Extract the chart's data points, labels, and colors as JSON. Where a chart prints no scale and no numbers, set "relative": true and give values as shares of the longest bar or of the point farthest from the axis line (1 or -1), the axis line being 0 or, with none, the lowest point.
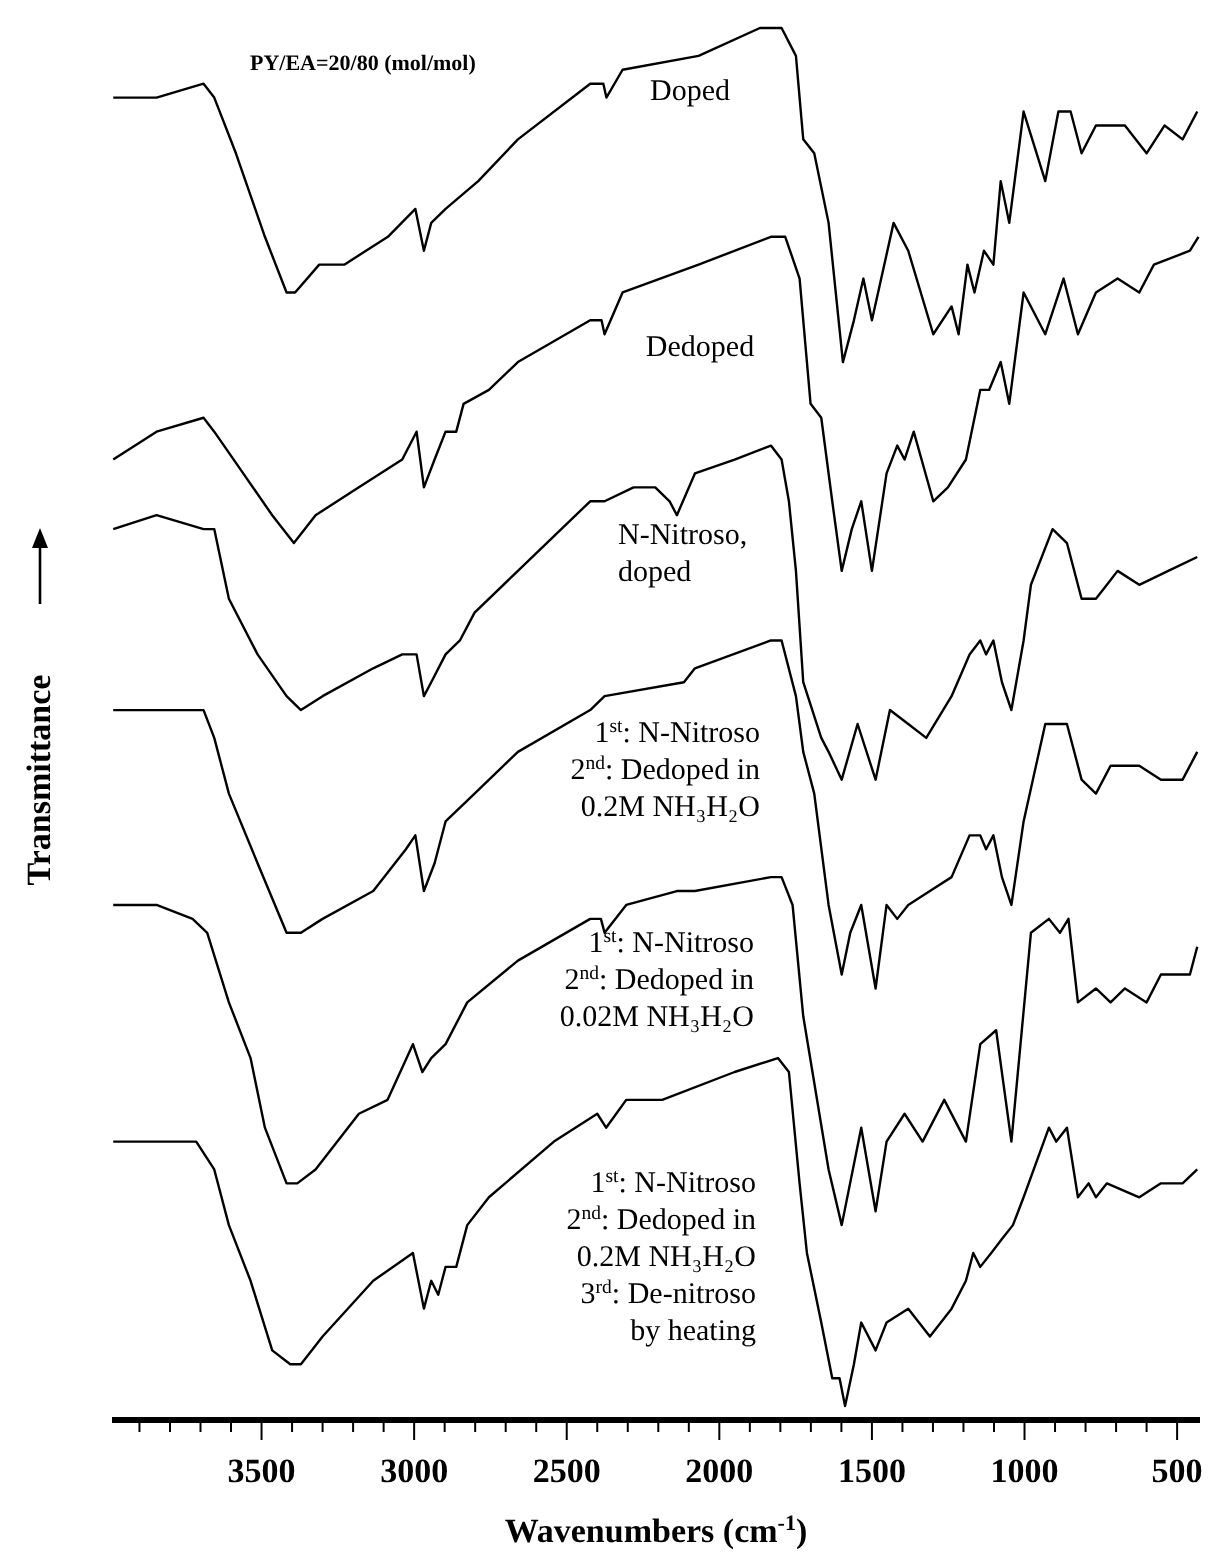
{
  "chart_data": {
    "type": "line",
    "title": "PY/EA=20/80 (mol/mol)",
    "xlabel": "Wavenumbers (cm$^{-1}$)",
    "ylabel": "Transmittance",
    "relative": true,
    "xlim": [
      3990,
      425
    ],
    "xticks": [
      {
        "value": 3900,
        "label": null
      },
      {
        "value": 3800,
        "label": null
      },
      {
        "value": 3700,
        "label": null
      },
      {
        "value": 3600,
        "label": null
      },
      3500,
      {
        "value": 3400,
        "label": null
      },
      {
        "value": 3300,
        "label": null
      },
      {
        "value": 3200,
        "label": null
      },
      {
        "value": 3100,
        "label": null
      },
      3000,
      {
        "value": 2900,
        "label": null
      },
      {
        "value": 2800,
        "label": null
      },
      {
        "value": 2700,
        "label": null
      },
      {
        "value": 2600,
        "label": null
      },
      2500,
      {
        "value": 2400,
        "label": null
      },
      {
        "value": 2300,
        "label": null
      },
      {
        "value": 2200,
        "label": null
      },
      {
        "value": 2100,
        "label": null
      },
      2000,
      {
        "value": 1900,
        "label": null
      },
      {
        "value": 1800,
        "label": null
      },
      {
        "value": 1700,
        "label": null
      },
      {
        "value": 1600,
        "label": null
      },
      1500,
      {
        "value": 1400,
        "label": null
      },
      {
        "value": 1300,
        "label": null
      },
      {
        "value": 1200,
        "label": null
      },
      {
        "value": 1100,
        "label": null
      },
      1000,
      {
        "value": 900,
        "label": null
      },
      {
        "value": 800,
        "label": null
      },
      {
        "value": 700,
        "label": null
      },
      {
        "value": 600,
        "label": null
      },
      500
    ],
    "series": [
      {
        "name": "Doped",
        "color": "#000000",
        "x": [
          3986,
          3844,
          3690,
          3655,
          3584,
          3489,
          3418,
          3390,
          3311,
          3229,
          3086,
          2996,
          2968,
          2944,
          2897,
          2790,
          2660,
          2423,
          2380,
          2370,
          2317,
          2068,
          1867,
          1796,
          1749,
          1725,
          1689,
          1642,
          1595,
          1559,
          1528,
          1500,
          1429,
          1381,
          1299,
          1239,
          1216,
          1187,
          1164,
          1133,
          1102,
          1078,
          1050,
          1003,
          932,
          889,
          849,
          813,
          766,
          671,
          600,
          541,
          482,
          434
        ],
        "values": [
          0.95,
          0.95,
          0.96,
          0.95,
          0.91,
          0.85,
          0.81,
          0.81,
          0.83,
          0.83,
          0.85,
          0.87,
          0.84,
          0.86,
          0.87,
          0.89,
          0.92,
          0.96,
          0.96,
          0.95,
          0.97,
          0.98,
          1.0,
          1.0,
          0.98,
          0.92,
          0.91,
          0.86,
          0.76,
          0.79,
          0.82,
          0.79,
          0.86,
          0.84,
          0.78,
          0.8,
          0.78,
          0.83,
          0.81,
          0.84,
          0.83,
          0.89,
          0.86,
          0.94,
          0.89,
          0.94,
          0.94,
          0.91,
          0.93,
          0.93,
          0.91,
          0.93,
          0.92,
          0.94
        ]
      },
      {
        "name": "Dedoped",
        "color": "#000000",
        "x": [
          3986,
          3844,
          3690,
          3655,
          3560,
          3465,
          3394,
          3323,
          3181,
          3039,
          2992,
          2968,
          2933,
          2897,
          2862,
          2838,
          2755,
          2660,
          2423,
          2386,
          2376,
          2317,
          2068,
          1831,
          1784,
          1737,
          1701,
          1666,
          1630,
          1599,
          1566,
          1535,
          1500,
          1452,
          1417,
          1393,
          1363,
          1299,
          1251,
          1192,
          1145,
          1116,
          1078,
          1050,
          1003,
          932,
          872,
          825,
          766,
          695,
          624,
          576,
          458,
          430
        ],
        "values": [
          0.69,
          0.71,
          0.72,
          0.71,
          0.68,
          0.65,
          0.63,
          0.65,
          0.67,
          0.69,
          0.71,
          0.67,
          0.69,
          0.71,
          0.71,
          0.73,
          0.74,
          0.76,
          0.79,
          0.79,
          0.78,
          0.81,
          0.83,
          0.85,
          0.85,
          0.82,
          0.73,
          0.72,
          0.66,
          0.61,
          0.64,
          0.66,
          0.61,
          0.68,
          0.7,
          0.69,
          0.71,
          0.66,
          0.67,
          0.69,
          0.74,
          0.74,
          0.76,
          0.73,
          0.81,
          0.78,
          0.82,
          0.78,
          0.81,
          0.82,
          0.81,
          0.83,
          0.84,
          0.85
        ]
      },
      {
        "name": "N-Nitroso,\ndoped",
        "color": "#000000",
        "x": [
          3986,
          3844,
          3690,
          3655,
          3607,
          3513,
          3418,
          3371,
          3300,
          3134,
          3039,
          2992,
          2968,
          2944,
          2897,
          2850,
          2802,
          2660,
          2423,
          2376,
          2281,
          2210,
          2163,
          2139,
          2080,
          1950,
          1831,
          1796,
          1772,
          1749,
          1725,
          1666,
          1642,
          1599,
          1547,
          1488,
          1441,
          1381,
          1322,
          1239,
          1180,
          1145,
          1126,
          1102,
          1074,
          1043,
          1003,
          979,
          908,
          861,
          813,
          766,
          730,
          695,
          624,
          529,
          434
        ],
        "values": [
          0.64,
          0.65,
          0.64,
          0.64,
          0.59,
          0.55,
          0.52,
          0.51,
          0.52,
          0.54,
          0.55,
          0.55,
          0.52,
          0.53,
          0.55,
          0.56,
          0.58,
          0.61,
          0.66,
          0.66,
          0.67,
          0.67,
          0.66,
          0.65,
          0.68,
          0.69,
          0.7,
          0.69,
          0.66,
          0.61,
          0.53,
          0.49,
          0.48,
          0.46,
          0.5,
          0.46,
          0.51,
          0.5,
          0.49,
          0.52,
          0.55,
          0.56,
          0.55,
          0.56,
          0.53,
          0.51,
          0.56,
          0.6,
          0.64,
          0.63,
          0.59,
          0.59,
          0.6,
          0.61,
          0.6,
          0.61,
          0.62
        ]
      },
      {
        "name": "1$^{st}$: N-Nitroso\n2$^{nd}$: Dedoped in\n0.2M NH₃H₂O",
        "color": "#000000",
        "x": [
          3986,
          3690,
          3655,
          3607,
          3513,
          3418,
          3371,
          3300,
          3134,
          3027,
          2996,
          2968,
          2933,
          2897,
          2802,
          2660,
          2423,
          2376,
          2116,
          2080,
          1831,
          1796,
          1749,
          1725,
          1689,
          1642,
          1599,
          1571,
          1535,
          1488,
          1452,
          1417,
          1381,
          1310,
          1239,
          1180,
          1145,
          1126,
          1102,
          1074,
          1043,
          1003,
          932,
          861,
          813,
          766,
          718,
          624,
          553,
          482,
          434
        ],
        "values": [
          0.51,
          0.51,
          0.49,
          0.45,
          0.4,
          0.35,
          0.35,
          0.36,
          0.38,
          0.41,
          0.42,
          0.38,
          0.4,
          0.43,
          0.45,
          0.48,
          0.51,
          0.52,
          0.53,
          0.54,
          0.56,
          0.56,
          0.52,
          0.48,
          0.45,
          0.37,
          0.32,
          0.35,
          0.37,
          0.31,
          0.37,
          0.36,
          0.37,
          0.38,
          0.39,
          0.42,
          0.42,
          0.41,
          0.42,
          0.39,
          0.37,
          0.43,
          0.5,
          0.5,
          0.46,
          0.45,
          0.47,
          0.47,
          0.46,
          0.46,
          0.48
        ]
      },
      {
        "name": "1$^{st}$: N-Nitroso\n2$^{nd}$: Dedoped in\n0.02M NH₃H₂O",
        "color": "#000000",
        "x": [
          3986,
          3844,
          3726,
          3678,
          3607,
          3536,
          3489,
          3418,
          3383,
          3323,
          3181,
          3087,
          3004,
          2973,
          2944,
          2897,
          2826,
          2660,
          2423,
          2388,
          2376,
          2305,
          2139,
          2080,
          1831,
          1796,
          1760,
          1725,
          1642,
          1599,
          1535,
          1488,
          1452,
          1393,
          1334,
          1263,
          1192,
          1145,
          1093,
          1043,
          979,
          920,
          884,
          856,
          825,
          766,
          718,
          671,
          600,
          553,
          458,
          434
        ],
        "values": [
          0.37,
          0.37,
          0.36,
          0.35,
          0.3,
          0.26,
          0.21,
          0.17,
          0.17,
          0.18,
          0.22,
          0.23,
          0.27,
          0.25,
          0.26,
          0.27,
          0.3,
          0.33,
          0.36,
          0.36,
          0.35,
          0.37,
          0.38,
          0.38,
          0.39,
          0.39,
          0.37,
          0.29,
          0.18,
          0.14,
          0.21,
          0.15,
          0.2,
          0.22,
          0.2,
          0.23,
          0.2,
          0.27,
          0.28,
          0.2,
          0.35,
          0.36,
          0.35,
          0.36,
          0.3,
          0.31,
          0.3,
          0.31,
          0.3,
          0.32,
          0.32,
          0.34
        ]
      },
      {
        "name": "1$^{st}$: N-Nitroso\n2$^{nd}$: Dedoped in\n0.2M NH₃H₂O\n3$^{rd}$: De-nitroso\nby heating",
        "color": "#000000",
        "x": [
          3986,
          3750,
          3714,
          3655,
          3607,
          3536,
          3465,
          3406,
          3371,
          3300,
          3134,
          3004,
          2968,
          2944,
          2921,
          2897,
          2862,
          2826,
          2755,
          2542,
          2400,
          2371,
          2305,
          2187,
          1950,
          1808,
          1772,
          1737,
          1713,
          1666,
          1630,
          1606,
          1588,
          1559,
          1535,
          1488,
          1452,
          1381,
          1310,
          1239,
          1192,
          1168,
          1145,
          1109,
          1074,
          1038,
          1003,
          920,
          896,
          861,
          825,
          790,
          766,
          730,
          624,
          553,
          482,
          434
        ],
        "values": [
          0.2,
          0.2,
          0.2,
          0.18,
          0.14,
          0.1,
          0.05,
          0.04,
          0.04,
          0.06,
          0.1,
          0.12,
          0.08,
          0.1,
          0.09,
          0.11,
          0.11,
          0.14,
          0.16,
          0.2,
          0.22,
          0.21,
          0.23,
          0.23,
          0.25,
          0.26,
          0.25,
          0.17,
          0.12,
          0.07,
          0.03,
          0.03,
          0.01,
          0.04,
          0.07,
          0.05,
          0.07,
          0.08,
          0.06,
          0.08,
          0.1,
          0.12,
          0.11,
          0.12,
          0.13,
          0.14,
          0.16,
          0.21,
          0.2,
          0.21,
          0.16,
          0.17,
          0.16,
          0.17,
          0.16,
          0.17,
          0.17,
          0.18
        ]
      }
    ]
  }
}
